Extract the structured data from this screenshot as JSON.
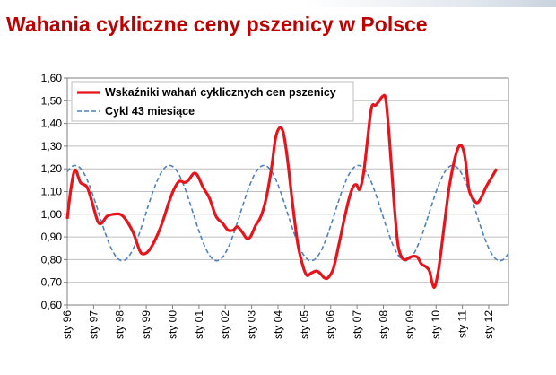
{
  "page": {
    "title": "Wahania cykliczne ceny pszenicy w Polsce"
  },
  "chart_data": {
    "type": "line",
    "title": "Wahania cykliczne ceny pszenicy w Polsce",
    "xlabel": "",
    "ylabel": "",
    "ylim": [
      0.6,
      1.6
    ],
    "xlim": [
      1996.0,
      2012.75
    ],
    "yticks": [
      "0,60",
      "0,70",
      "0,80",
      "0,90",
      "1,00",
      "1,10",
      "1,20",
      "1,30",
      "1,40",
      "1,50",
      "1,60"
    ],
    "xticks": [
      {
        "x": 1996,
        "label": "sty 96"
      },
      {
        "x": 1997,
        "label": "sty 97"
      },
      {
        "x": 1998,
        "label": "sty 98"
      },
      {
        "x": 1999,
        "label": "sty 99"
      },
      {
        "x": 2000,
        "label": "sty 00"
      },
      {
        "x": 2001,
        "label": "sty 01"
      },
      {
        "x": 2002,
        "label": "sty 02"
      },
      {
        "x": 2003,
        "label": "sty 03"
      },
      {
        "x": 2004,
        "label": "sty 04"
      },
      {
        "x": 2005,
        "label": "sty 05"
      },
      {
        "x": 2006,
        "label": "sty 06"
      },
      {
        "x": 2007,
        "label": "sty 07"
      },
      {
        "x": 2008,
        "label": "sty 08"
      },
      {
        "x": 2009,
        "label": "sty 09"
      },
      {
        "x": 2010,
        "label": "sty 10"
      },
      {
        "x": 2011,
        "label": "sty 11"
      },
      {
        "x": 2012,
        "label": "sty 12"
      }
    ],
    "grid": "horizontal",
    "legend": "top-left",
    "series": [
      {
        "name": "Wskaźniki wahań cyklicznych cen pszenicy",
        "color": "#e8141c",
        "style": "solid",
        "points": [
          [
            1996.0,
            0.98
          ],
          [
            1996.15,
            1.12
          ],
          [
            1996.3,
            1.195
          ],
          [
            1996.5,
            1.14
          ],
          [
            1996.75,
            1.12
          ],
          [
            1996.95,
            1.05
          ],
          [
            1997.15,
            0.97
          ],
          [
            1997.3,
            0.96
          ],
          [
            1997.5,
            0.99
          ],
          [
            1997.75,
            1.0
          ],
          [
            1998.0,
            1.0
          ],
          [
            1998.2,
            0.98
          ],
          [
            1998.5,
            0.92
          ],
          [
            1998.75,
            0.84
          ],
          [
            1998.9,
            0.825
          ],
          [
            1999.1,
            0.84
          ],
          [
            1999.35,
            0.89
          ],
          [
            1999.6,
            0.96
          ],
          [
            1999.85,
            1.05
          ],
          [
            2000.05,
            1.11
          ],
          [
            2000.25,
            1.145
          ],
          [
            2000.45,
            1.14
          ],
          [
            2000.6,
            1.15
          ],
          [
            2000.8,
            1.18
          ],
          [
            2000.95,
            1.17
          ],
          [
            2001.15,
            1.12
          ],
          [
            2001.4,
            1.07
          ],
          [
            2001.65,
            0.99
          ],
          [
            2001.9,
            0.96
          ],
          [
            2002.1,
            0.93
          ],
          [
            2002.3,
            0.93
          ],
          [
            2002.45,
            0.945
          ],
          [
            2002.65,
            0.92
          ],
          [
            2002.8,
            0.895
          ],
          [
            2002.95,
            0.9
          ],
          [
            2003.15,
            0.95
          ],
          [
            2003.35,
            0.99
          ],
          [
            2003.55,
            1.07
          ],
          [
            2003.75,
            1.2
          ],
          [
            2003.9,
            1.33
          ],
          [
            2004.05,
            1.38
          ],
          [
            2004.2,
            1.36
          ],
          [
            2004.35,
            1.25
          ],
          [
            2004.55,
            1.05
          ],
          [
            2004.75,
            0.87
          ],
          [
            2004.95,
            0.77
          ],
          [
            2005.1,
            0.73
          ],
          [
            2005.25,
            0.74
          ],
          [
            2005.45,
            0.75
          ],
          [
            2005.6,
            0.74
          ],
          [
            2005.75,
            0.72
          ],
          [
            2005.9,
            0.72
          ],
          [
            2006.1,
            0.76
          ],
          [
            2006.3,
            0.86
          ],
          [
            2006.5,
            0.97
          ],
          [
            2006.7,
            1.07
          ],
          [
            2006.85,
            1.12
          ],
          [
            2006.98,
            1.13
          ],
          [
            2007.1,
            1.11
          ],
          [
            2007.25,
            1.18
          ],
          [
            2007.4,
            1.33
          ],
          [
            2007.55,
            1.47
          ],
          [
            2007.7,
            1.48
          ],
          [
            2007.85,
            1.5
          ],
          [
            2007.98,
            1.52
          ],
          [
            2008.1,
            1.5
          ],
          [
            2008.25,
            1.3
          ],
          [
            2008.4,
            1.06
          ],
          [
            2008.55,
            0.87
          ],
          [
            2008.7,
            0.81
          ],
          [
            2008.85,
            0.8
          ],
          [
            2009.0,
            0.81
          ],
          [
            2009.15,
            0.815
          ],
          [
            2009.3,
            0.81
          ],
          [
            2009.45,
            0.78
          ],
          [
            2009.6,
            0.77
          ],
          [
            2009.75,
            0.75
          ],
          [
            2009.85,
            0.7
          ],
          [
            2009.95,
            0.68
          ],
          [
            2010.1,
            0.76
          ],
          [
            2010.3,
            0.94
          ],
          [
            2010.5,
            1.12
          ],
          [
            2010.7,
            1.24
          ],
          [
            2010.85,
            1.295
          ],
          [
            2010.98,
            1.3
          ],
          [
            2011.1,
            1.25
          ],
          [
            2011.25,
            1.11
          ],
          [
            2011.4,
            1.07
          ],
          [
            2011.55,
            1.05
          ],
          [
            2011.7,
            1.07
          ],
          [
            2011.9,
            1.12
          ],
          [
            2012.1,
            1.16
          ],
          [
            2012.3,
            1.2
          ]
        ]
      },
      {
        "name": "Cykl 43 miesiące",
        "color": "#4f81bd",
        "style": "dashed",
        "amplitude": 0.21,
        "mean": 1.005,
        "period_months": 43,
        "peak_at": 1996.3
      }
    ]
  }
}
